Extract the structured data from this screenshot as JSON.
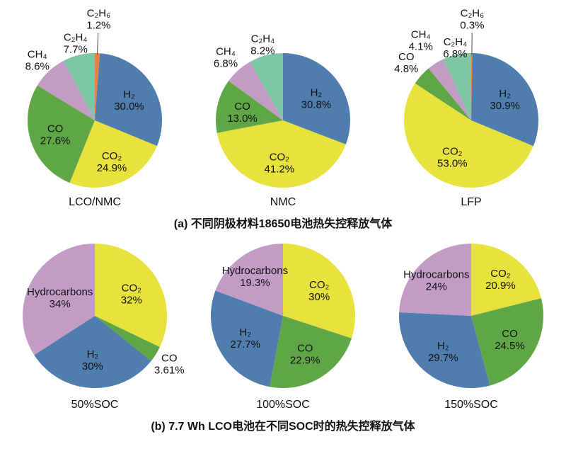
{
  "captions": {
    "a": "(a) 不同阴极材料18650电池热失控释放气体",
    "b": "(b) 7.7 Wh LCO电池在不同SOC时的热失控释放气体"
  },
  "palette": {
    "h2": "#4e7dae",
    "co2": "#e7e33c",
    "co": "#5fa746",
    "ch4": "#c39cc6",
    "c2h4": "#7fc6a4",
    "c2h6": "#e8803c",
    "hydrocarbons": "#c39cc6"
  },
  "chart_data": [
    {
      "type": "pie",
      "title": "LCO/NMC",
      "group": "a",
      "radius": 95,
      "slices": [
        {
          "id": "c2h6",
          "name": "C₂H₆",
          "value": 1.2,
          "pct": "1.2%",
          "color": "#e8803c",
          "label": "leader"
        },
        {
          "id": "h2",
          "name": "H₂",
          "value": 30.0,
          "pct": "30.0%",
          "color": "#4e7dae",
          "label": "inside",
          "lr": 0.6
        },
        {
          "id": "co2",
          "name": "CO₂",
          "value": 24.9,
          "pct": "24.9%",
          "color": "#e7e33c",
          "label": "inside",
          "lr": 0.65
        },
        {
          "id": "co",
          "name": "CO",
          "value": 27.6,
          "pct": "27.6%",
          "color": "#5fa746",
          "label": "inside",
          "lr": 0.62
        },
        {
          "id": "ch4",
          "name": "CH₄",
          "value": 8.6,
          "pct": "8.6%",
          "color": "#c39cc6",
          "label": "outside",
          "lr": 1.25
        },
        {
          "id": "c2h4",
          "name": "C₂H₄",
          "value": 7.7,
          "pct": "7.7%",
          "color": "#7fc6a4",
          "label": "outside",
          "lr": 1.2
        }
      ]
    },
    {
      "type": "pie",
      "title": "NMC",
      "group": "a",
      "radius": 95,
      "slices": [
        {
          "id": "h2",
          "name": "H₂",
          "value": 30.8,
          "pct": "30.8%",
          "color": "#4e7dae",
          "label": "inside",
          "lr": 0.6
        },
        {
          "id": "co2",
          "name": "CO₂",
          "value": 41.2,
          "pct": "41.2%",
          "color": "#e7e33c",
          "label": "inside",
          "lr": 0.62
        },
        {
          "id": "co",
          "name": "CO",
          "value": 13.0,
          "pct": "13.0%",
          "color": "#5fa746",
          "label": "inside",
          "lr": 0.62
        },
        {
          "id": "ch4",
          "name": "CH₄",
          "value": 6.8,
          "pct": "6.8%",
          "color": "#c39cc6",
          "label": "outside",
          "lr": 1.28
        },
        {
          "id": "c2h4",
          "name": "C₂H₄",
          "value": 8.2,
          "pct": "8.2%",
          "color": "#7fc6a4",
          "label": "outside",
          "lr": 1.18
        }
      ]
    },
    {
      "type": "pie",
      "title": "LFP",
      "group": "a",
      "radius": 95,
      "slices": [
        {
          "id": "c2h6",
          "name": "C₂H₆",
          "value": 0.3,
          "pct": "0.3%",
          "color": "#e8803c",
          "label": "leader"
        },
        {
          "id": "h2",
          "name": "H₂",
          "value": 30.9,
          "pct": "30.9%",
          "color": "#4e7dae",
          "label": "inside",
          "lr": 0.6
        },
        {
          "id": "co2",
          "name": "CO₂",
          "value": 53.0,
          "pct": "53.0%",
          "color": "#e7e33c",
          "label": "inside",
          "lr": 0.6
        },
        {
          "id": "co",
          "name": "CO",
          "value": 4.8,
          "pct": "4.8%",
          "color": "#5fa746",
          "label": "outside",
          "lr": 1.3
        },
        {
          "id": "ch4",
          "name": "CH₄",
          "value": 4.1,
          "pct": "4.1%",
          "color": "#c39cc6",
          "label": "outside",
          "lr": 1.42
        },
        {
          "id": "c2h4",
          "name": "C₂H₄",
          "value": 6.8,
          "pct": "6.8%",
          "color": "#7fc6a4",
          "label": "outside",
          "lr": 1.12
        }
      ]
    },
    {
      "type": "pie",
      "title": "50%SOC",
      "group": "b",
      "radius": 102,
      "slices": [
        {
          "id": "co2",
          "name": "CO₂",
          "value": 32,
          "pct": "32%",
          "color": "#e7e33c",
          "label": "inside",
          "lr": 0.6
        },
        {
          "id": "co",
          "name": "CO",
          "value": 3.61,
          "pct": "3.61%",
          "color": "#5fa746",
          "label": "outside",
          "lr": 1.22
        },
        {
          "id": "h2",
          "name": "H₂",
          "value": 30,
          "pct": "30%",
          "color": "#4e7dae",
          "label": "inside",
          "lr": 0.6
        },
        {
          "id": "hydrocarbons",
          "name": "Hydrocarbons",
          "value": 34,
          "pct": "34%",
          "color": "#c39cc6",
          "label": "inside",
          "lr": 0.55
        }
      ]
    },
    {
      "type": "pie",
      "title": "100%SOC",
      "group": "b",
      "radius": 102,
      "slices": [
        {
          "id": "co2",
          "name": "CO₂",
          "value": 30,
          "pct": "30%",
          "color": "#e7e33c",
          "label": "inside",
          "lr": 0.62
        },
        {
          "id": "co",
          "name": "CO",
          "value": 22.9,
          "pct": "22.9%",
          "color": "#5fa746",
          "label": "inside",
          "lr": 0.6
        },
        {
          "id": "h2",
          "name": "H₂",
          "value": 27.7,
          "pct": "27.7%",
          "color": "#4e7dae",
          "label": "inside",
          "lr": 0.6
        },
        {
          "id": "hydrocarbons",
          "name": "Hydrocarbons",
          "value": 19.3,
          "pct": "19.3%",
          "color": "#c39cc6",
          "label": "inside",
          "lr": 0.68
        }
      ]
    },
    {
      "type": "pie",
      "title": "150%SOC",
      "group": "b",
      "radius": 102,
      "slices": [
        {
          "id": "co2",
          "name": "CO₂",
          "value": 20.9,
          "pct": "20.9%",
          "color": "#e7e33c",
          "label": "inside",
          "lr": 0.66
        },
        {
          "id": "co",
          "name": "CO",
          "value": 24.5,
          "pct": "24.5%",
          "color": "#5fa746",
          "label": "inside",
          "lr": 0.62
        },
        {
          "id": "h2",
          "name": "H₂",
          "value": 29.7,
          "pct": "29.7%",
          "color": "#4e7dae",
          "label": "inside",
          "lr": 0.62
        },
        {
          "id": "hydrocarbons",
          "name": "Hydrocarbons",
          "value": 24,
          "pct": "24%",
          "color": "#c39cc6",
          "label": "inside",
          "lr": 0.7
        }
      ]
    }
  ]
}
